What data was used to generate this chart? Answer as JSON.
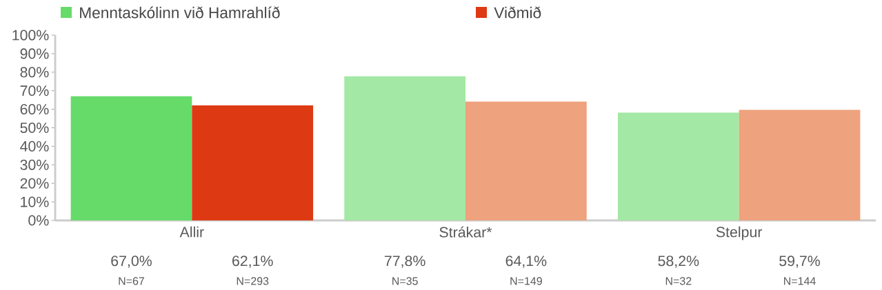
{
  "chart_data": {
    "type": "bar",
    "categories": [
      "Allir",
      "Strákar*",
      "Stelpur"
    ],
    "series": [
      {
        "name": "Menntaskólinn við Hamrahlíð",
        "colors": [
          "#66db6a",
          "#a3e8a4",
          "#a3e8a4"
        ],
        "values": [
          67.0,
          77.8,
          58.2
        ],
        "value_labels": [
          "67,0%",
          "77,8%",
          "58,2%"
        ]
      },
      {
        "name": "Viðmið",
        "colors": [
          "#dd3a14",
          "#eea27d",
          "#eea27d"
        ],
        "values": [
          62.1,
          64.1,
          59.7
        ],
        "value_labels": [
          "62,1%",
          "64,1%",
          "59,7%"
        ]
      }
    ],
    "ylim": [
      0,
      100
    ],
    "yticks": [
      {
        "value": 0,
        "label": "0%"
      },
      {
        "value": 10,
        "label": "10%"
      },
      {
        "value": 20,
        "label": "20%"
      },
      {
        "value": 30,
        "label": "30%"
      },
      {
        "value": 40,
        "label": "40%"
      },
      {
        "value": 50,
        "label": "50%"
      },
      {
        "value": 60,
        "label": "60%"
      },
      {
        "value": 70,
        "label": "70%"
      },
      {
        "value": 80,
        "label": "80%"
      },
      {
        "value": 90,
        "label": "90%"
      },
      {
        "value": 100,
        "label": "100%"
      }
    ],
    "annotations": [
      "N=67",
      "N=293",
      "N=35",
      "N=149",
      "N=32",
      "N=144"
    ],
    "legend": "top",
    "grid": false
  }
}
